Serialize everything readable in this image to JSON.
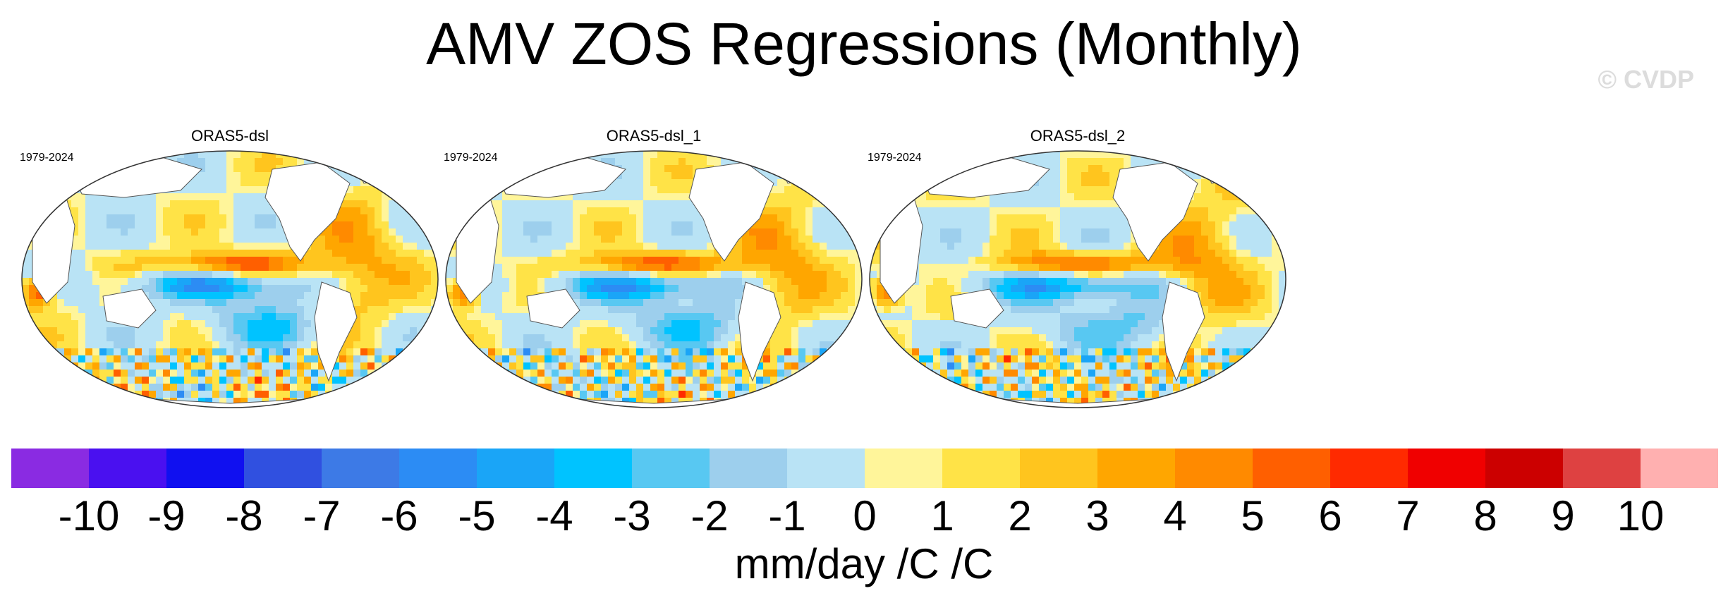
{
  "title": "AMV ZOS Regressions (Monthly)",
  "watermark": "© CVDP",
  "panels": [
    {
      "title": "ORAS5-dsl",
      "period": "1979-2024"
    },
    {
      "title": "ORAS5-dsl_1",
      "period": "1979-2024"
    },
    {
      "title": "ORAS5-dsl_2",
      "period": "1979-2024"
    }
  ],
  "colorbar": {
    "colors": [
      "#8a2be2",
      "#4a10f0",
      "#1010f0",
      "#3050e0",
      "#3d7ae6",
      "#2c8cf4",
      "#1aa5f7",
      "#00c3ff",
      "#58c8f2",
      "#9dcfed",
      "#b9e3f5",
      "#fff59a",
      "#ffe347",
      "#ffc51e",
      "#ffa600",
      "#ff8a00",
      "#ff5f00",
      "#ff2a00",
      "#f00000",
      "#cc0000",
      "#de4141",
      "#ffb0b0"
    ],
    "labels": [
      "-10",
      "-9",
      "-8",
      "-7",
      "-6",
      "-5",
      "-4",
      "-3",
      "-2",
      "-1",
      "0",
      "1",
      "2",
      "3",
      "4",
      "5",
      "6",
      "7",
      "8",
      "9",
      "10"
    ]
  },
  "units": "mm/day /C /C"
}
